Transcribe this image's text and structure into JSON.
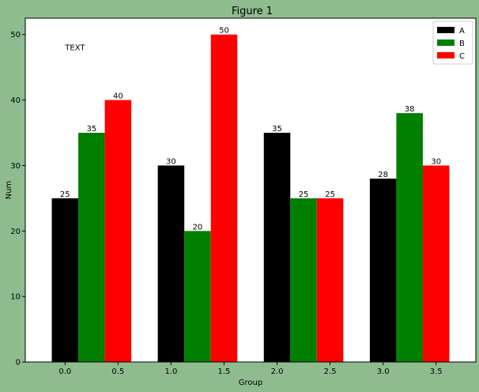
{
  "window": {
    "title": "Figure 1"
  },
  "colors": {
    "figure_bg": "#8fbc8f",
    "axes_bg": "#ffffff",
    "axis": "#000000"
  },
  "chart_data": {
    "type": "bar",
    "title": "",
    "xlabel": "Group",
    "ylabel": "Num",
    "xlim": [
      -0.375,
      3.875
    ],
    "ylim": [
      0,
      52.5
    ],
    "xticks": [
      0.0,
      0.5,
      1.0,
      1.5,
      2.0,
      2.5,
      3.0,
      3.5
    ],
    "xtick_labels": [
      "0.0",
      "0.5",
      "1.0",
      "1.5",
      "2.0",
      "2.5",
      "3.0",
      "3.5"
    ],
    "yticks": [
      0,
      10,
      20,
      30,
      40,
      50
    ],
    "ytick_labels": [
      "0",
      "10",
      "20",
      "30",
      "40",
      "50"
    ],
    "grid": false,
    "legend_position": "top-right",
    "bar_width": 0.25,
    "annotation": {
      "text": "TEXT",
      "x": 0.0,
      "y": 48
    },
    "series": [
      {
        "name": "A",
        "color": "#000000",
        "x": [
          0.0,
          1.0,
          2.0,
          3.0
        ],
        "values": [
          25,
          30,
          35,
          28
        ]
      },
      {
        "name": "B",
        "color": "#008000",
        "x": [
          0.25,
          1.25,
          2.25,
          3.25
        ],
        "values": [
          35,
          20,
          25,
          38
        ]
      },
      {
        "name": "C",
        "color": "#ff0000",
        "x": [
          0.5,
          1.5,
          2.5,
          3.5
        ],
        "values": [
          40,
          50,
          25,
          30
        ]
      }
    ]
  }
}
